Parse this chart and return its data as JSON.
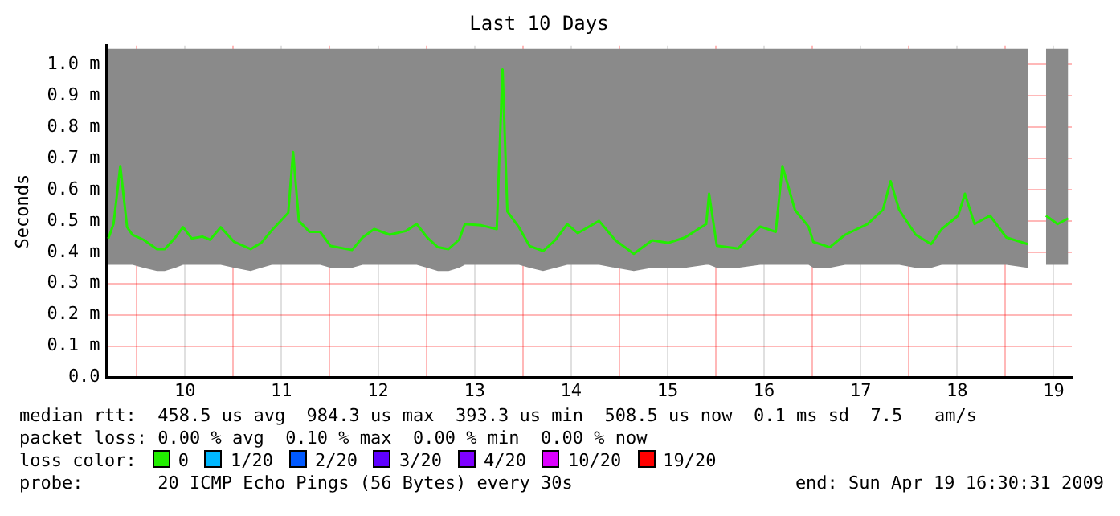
{
  "chart_data": {
    "type": "line",
    "title": "Last 10 Days",
    "ylabel": "Seconds",
    "legend_title": "loss color:",
    "legend": "bottom",
    "grid": true,
    "xlim": [
      9.6875,
      19.6875
    ],
    "xticks": [
      {
        "value": 10,
        "label": null
      },
      {
        "value": 10.5,
        "label": "10"
      },
      {
        "value": 11,
        "label": null
      },
      {
        "value": 11.5,
        "label": "11"
      },
      {
        "value": 12,
        "label": null
      },
      {
        "value": 12.5,
        "label": "12"
      },
      {
        "value": 13,
        "label": null
      },
      {
        "value": 13.5,
        "label": "13"
      },
      {
        "value": 14,
        "label": null
      },
      {
        "value": 14.5,
        "label": "14"
      },
      {
        "value": 15,
        "label": null
      },
      {
        "value": 15.5,
        "label": "15"
      },
      {
        "value": 16,
        "label": null
      },
      {
        "value": 16.5,
        "label": "16"
      },
      {
        "value": 17,
        "label": null
      },
      {
        "value": 17.5,
        "label": "17"
      },
      {
        "value": 18,
        "label": null
      },
      {
        "value": 18.5,
        "label": "18"
      },
      {
        "value": 19,
        "label": null
      },
      {
        "value": 19.5,
        "label": "19"
      }
    ],
    "ylim": [
      0,
      1.06
    ],
    "yticks": [
      {
        "value": 0,
        "label": "0.0"
      },
      {
        "value": 0.1,
        "label": "0.1 m"
      },
      {
        "value": 0.2,
        "label": "0.2 m"
      },
      {
        "value": 0.3,
        "label": "0.3 m"
      },
      {
        "value": 0.4,
        "label": "0.4 m"
      },
      {
        "value": 0.5,
        "label": "0.5 m"
      },
      {
        "value": 0.6,
        "label": "0.6 m"
      },
      {
        "value": 0.7,
        "label": "0.7 m"
      },
      {
        "value": 0.8,
        "label": "0.8 m"
      },
      {
        "value": 0.9,
        "label": "0.9 m"
      },
      {
        "value": 1.0,
        "label": "1.0 m"
      }
    ],
    "x": [
      9.706,
      9.76,
      9.83,
      9.9,
      9.956,
      10.07,
      10.21,
      10.29,
      10.4,
      10.48,
      10.57,
      10.68,
      10.76,
      10.87,
      11.01,
      11.18,
      11.29,
      11.4,
      11.57,
      11.62,
      11.68,
      11.79,
      11.9,
      12.01,
      12.23,
      12.34,
      12.46,
      12.62,
      12.79,
      12.9,
      13.01,
      13.12,
      13.23,
      13.34,
      13.4,
      13.57,
      13.73,
      13.79,
      13.84,
      13.96,
      14.07,
      14.21,
      14.34,
      14.46,
      14.57,
      14.79,
      14.96,
      15.15,
      15.34,
      15.51,
      15.68,
      15.9,
      15.93,
      16.01,
      16.23,
      16.46,
      16.62,
      16.69,
      16.82,
      16.96,
      17.01,
      17.18,
      17.34,
      17.57,
      17.73,
      17.81,
      17.9,
      18.07,
      18.23,
      18.34,
      18.51,
      18.58,
      18.68,
      18.84,
      19.01,
      19.23,
      19.32,
      19.42,
      19.54,
      19.65
    ],
    "series": [
      {
        "name": "0",
        "color": "#22ee00",
        "values": [
          0.444,
          0.491,
          0.675,
          0.48,
          0.456,
          0.44,
          0.41,
          0.41,
          0.447,
          0.48,
          0.444,
          0.45,
          0.44,
          0.48,
          0.433,
          0.41,
          0.43,
          0.47,
          0.526,
          0.72,
          0.5,
          0.465,
          0.465,
          0.42,
          0.407,
          0.447,
          0.474,
          0.456,
          0.468,
          0.49,
          0.447,
          0.416,
          0.41,
          0.44,
          0.49,
          0.486,
          0.474,
          0.984,
          0.53,
          0.48,
          0.42,
          0.404,
          0.44,
          0.49,
          0.461,
          0.5,
          0.438,
          0.395,
          0.438,
          0.43,
          0.447,
          0.49,
          0.587,
          0.421,
          0.412,
          0.482,
          0.465,
          0.675,
          0.535,
          0.482,
          0.433,
          0.416,
          0.456,
          0.49,
          0.535,
          0.627,
          0.535,
          0.456,
          0.426,
          0.474,
          0.517,
          0.587,
          0.49,
          0.517,
          0.447,
          0.426,
          null,
          0.517,
          0.49,
          0.508
        ],
        "lower": [
          0.36,
          0.36,
          0.36,
          0.36,
          0.36,
          0.35,
          0.34,
          0.34,
          0.35,
          0.36,
          0.36,
          0.36,
          0.36,
          0.36,
          0.35,
          0.34,
          0.35,
          0.36,
          0.36,
          0.36,
          0.36,
          0.36,
          0.36,
          0.35,
          0.35,
          0.36,
          0.36,
          0.36,
          0.36,
          0.36,
          0.35,
          0.34,
          0.34,
          0.35,
          0.36,
          0.36,
          0.36,
          0.36,
          0.36,
          0.36,
          0.35,
          0.34,
          0.35,
          0.36,
          0.36,
          0.36,
          0.35,
          0.34,
          0.35,
          0.35,
          0.35,
          0.36,
          0.36,
          0.35,
          0.35,
          0.36,
          0.36,
          0.36,
          0.36,
          0.36,
          0.35,
          0.35,
          0.36,
          0.36,
          0.36,
          0.36,
          0.36,
          0.35,
          0.35,
          0.36,
          0.36,
          0.36,
          0.36,
          0.36,
          0.36,
          0.35,
          null,
          0.36,
          0.36,
          0.36
        ],
        "upper": [
          1.05,
          1.05,
          1.05,
          1.05,
          1.05,
          1.05,
          1.05,
          1.05,
          1.05,
          1.05,
          1.05,
          1.05,
          1.05,
          1.05,
          1.05,
          1.05,
          1.05,
          1.05,
          1.05,
          1.05,
          1.05,
          1.05,
          1.05,
          1.05,
          1.05,
          1.05,
          1.05,
          1.05,
          1.05,
          1.05,
          1.05,
          1.05,
          1.05,
          1.05,
          1.05,
          1.05,
          1.05,
          1.05,
          1.05,
          1.05,
          1.05,
          1.05,
          1.05,
          1.05,
          1.05,
          1.05,
          1.05,
          1.05,
          1.05,
          1.05,
          1.05,
          1.05,
          1.05,
          1.05,
          1.05,
          1.05,
          1.05,
          1.05,
          1.05,
          1.05,
          1.05,
          1.05,
          1.05,
          1.05,
          1.05,
          1.05,
          1.05,
          1.05,
          1.05,
          1.05,
          1.05,
          1.05,
          1.05,
          1.05,
          1.05,
          1.05,
          null,
          1.05,
          1.05,
          1.05
        ]
      },
      {
        "name": "1/20",
        "color": "#00b8ff",
        "values": [
          null,
          null,
          null,
          null,
          null,
          null,
          null,
          null,
          null,
          null,
          null,
          null,
          null,
          null,
          null,
          null,
          null,
          null,
          null,
          null,
          null,
          null,
          null,
          null,
          null,
          null,
          null,
          null,
          null,
          null,
          null,
          null,
          null,
          null,
          null,
          null,
          null,
          null,
          null,
          null,
          null,
          null,
          null,
          null,
          null,
          null,
          null,
          null,
          null,
          null,
          null,
          null,
          null,
          null,
          null,
          null,
          null,
          null,
          null,
          null,
          null,
          null,
          null,
          null,
          null,
          null,
          null,
          null,
          null,
          null,
          null,
          null,
          null,
          null,
          null,
          null,
          null,
          null,
          null,
          null
        ]
      },
      {
        "name": "2/20",
        "color": "#0059ff",
        "values": [
          null,
          null,
          null,
          null,
          null,
          null,
          null,
          null,
          null,
          null,
          null,
          null,
          null,
          null,
          null,
          null,
          null,
          null,
          null,
          null,
          null,
          null,
          null,
          null,
          null,
          null,
          null,
          null,
          null,
          null,
          null,
          null,
          null,
          null,
          null,
          null,
          null,
          null,
          null,
          null,
          null,
          null,
          null,
          null,
          null,
          null,
          null,
          null,
          null,
          null,
          null,
          null,
          null,
          null,
          null,
          null,
          null,
          null,
          null,
          null,
          null,
          null,
          null,
          null,
          null,
          null,
          null,
          null,
          null,
          null,
          null,
          null,
          null,
          null,
          null,
          null,
          null,
          null,
          null,
          null
        ]
      },
      {
        "name": "3/20",
        "color": "#5e00ff",
        "values": [
          null,
          null,
          null,
          null,
          null,
          null,
          null,
          null,
          null,
          null,
          null,
          null,
          null,
          null,
          null,
          null,
          null,
          null,
          null,
          null,
          null,
          null,
          null,
          null,
          null,
          null,
          null,
          null,
          null,
          null,
          null,
          null,
          null,
          null,
          null,
          null,
          null,
          null,
          null,
          null,
          null,
          null,
          null,
          null,
          null,
          null,
          null,
          null,
          null,
          null,
          null,
          null,
          null,
          null,
          null,
          null,
          null,
          null,
          null,
          null,
          null,
          null,
          null,
          null,
          null,
          null,
          null,
          null,
          null,
          null,
          null,
          null,
          null,
          null,
          null,
          null,
          null,
          null,
          null,
          null
        ]
      },
      {
        "name": "4/20",
        "color": "#7e00ff",
        "values": [
          null,
          null,
          null,
          null,
          null,
          null,
          null,
          null,
          null,
          null,
          null,
          null,
          null,
          null,
          null,
          null,
          null,
          null,
          null,
          null,
          null,
          null,
          null,
          null,
          null,
          null,
          null,
          null,
          null,
          null,
          null,
          null,
          null,
          null,
          null,
          null,
          null,
          null,
          null,
          null,
          null,
          null,
          null,
          null,
          null,
          null,
          null,
          null,
          null,
          null,
          null,
          null,
          null,
          null,
          null,
          null,
          null,
          null,
          null,
          null,
          null,
          null,
          null,
          null,
          null,
          null,
          null,
          null,
          null,
          null,
          null,
          null,
          null,
          null,
          null,
          null,
          null,
          null,
          null,
          null
        ]
      },
      {
        "name": "10/20",
        "color": "#dd00ff",
        "values": [
          null,
          null,
          null,
          null,
          null,
          null,
          null,
          null,
          null,
          null,
          null,
          null,
          null,
          null,
          null,
          null,
          null,
          null,
          null,
          null,
          null,
          null,
          null,
          null,
          null,
          null,
          null,
          null,
          null,
          null,
          null,
          null,
          null,
          null,
          null,
          null,
          null,
          null,
          null,
          null,
          null,
          null,
          null,
          null,
          null,
          null,
          null,
          null,
          null,
          null,
          null,
          null,
          null,
          null,
          null,
          null,
          null,
          null,
          null,
          null,
          null,
          null,
          null,
          null,
          null,
          null,
          null,
          null,
          null,
          null,
          null,
          null,
          null,
          null,
          null,
          null,
          null,
          null,
          null,
          null
        ]
      },
      {
        "name": "19/20",
        "color": "#ff0000",
        "values": [
          null,
          null,
          null,
          null,
          null,
          null,
          null,
          null,
          null,
          null,
          null,
          null,
          null,
          null,
          null,
          null,
          null,
          null,
          null,
          null,
          null,
          null,
          null,
          null,
          null,
          null,
          null,
          null,
          null,
          null,
          null,
          null,
          null,
          null,
          null,
          null,
          null,
          null,
          null,
          null,
          null,
          null,
          null,
          null,
          null,
          null,
          null,
          null,
          null,
          null,
          null,
          null,
          null,
          null,
          null,
          null,
          null,
          null,
          null,
          null,
          null,
          null,
          null,
          null,
          null,
          null,
          null,
          null,
          null,
          null,
          null,
          null,
          null,
          null,
          null,
          null,
          null,
          null,
          null,
          null
        ]
      }
    ],
    "annotations": [
      "median rtt:  458.5 us avg  984.3 us max  393.3 us min  508.5 us now  0.1 ms sd  7.5   am/s",
      "packet loss: 0.00 % avg  0.10 % max  0.00 % min  0.00 % now",
      "probe:       20 ICMP Echo Pings (56 Bytes) every 30s",
      "end: Sun Apr 19 16:30:31 2009"
    ]
  }
}
